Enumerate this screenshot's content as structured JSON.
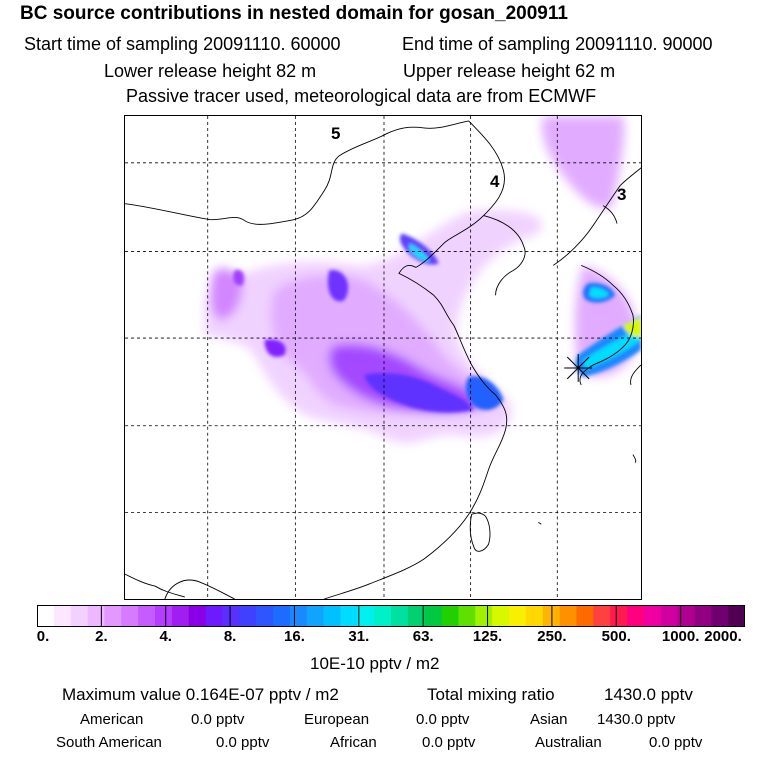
{
  "title": "BC  source contributions in nested domain for gosan_200911",
  "sampling": {
    "start": "Start time of sampling 20091110. 60000",
    "end": "End time of sampling 20091110. 90000",
    "lower": "Lower release height   82 m",
    "upper": "Upper release height   62 m",
    "note": "Passive tracer used, meteorological data are from ECMWF"
  },
  "map": {
    "source_labels": [
      "5",
      "4",
      "3"
    ],
    "receptor": "gosan",
    "grid": "dashed"
  },
  "colorbar": {
    "ticks": [
      "0.",
      "2.",
      "4.",
      "8.",
      "16.",
      "31.",
      "63.",
      "125.",
      "250.",
      "500.",
      "1000.",
      "2000."
    ],
    "units": "10E-10 pptv / m2",
    "colors": [
      "#ffffff",
      "#fbe8ff",
      "#f4d0ff",
      "#eeb8ff",
      "#e199ff",
      "#d47bff",
      "#c45cff",
      "#b53dff",
      "#a01ff0",
      "#8a00e6",
      "#6c1aff",
      "#5a30ff",
      "#4040ff",
      "#2f55ff",
      "#1e6cff",
      "#1a88ff",
      "#10a4ff",
      "#00c0ff",
      "#00dcff",
      "#00f0f0",
      "#00f0c8",
      "#00e0a0",
      "#00d070",
      "#00c840",
      "#20d000",
      "#60e000",
      "#a0f000",
      "#d8f800",
      "#f8f000",
      "#ffd800",
      "#ffb400",
      "#ff9000",
      "#ff6a00",
      "#ff4040",
      "#ff1a50",
      "#ff0080",
      "#f000a0",
      "#d000a0",
      "#b00090",
      "#900080",
      "#700070",
      "#500050"
    ]
  },
  "summary": {
    "max_value": "Maximum value  0.164E-07 pptv / m2",
    "total_label": "Total mixing ratio",
    "total_value": "1430.0 pptv",
    "rows": [
      [
        {
          "name": "American",
          "value": "0.0 pptv"
        },
        {
          "name": "European",
          "value": "0.0 pptv"
        },
        {
          "name": "Asian",
          "value": "1430.0 pptv"
        }
      ],
      [
        {
          "name": "South American",
          "value": "0.0 pptv"
        },
        {
          "name": "African",
          "value": "0.0 pptv"
        },
        {
          "name": "Australian",
          "value": "0.0 pptv"
        }
      ]
    ]
  }
}
